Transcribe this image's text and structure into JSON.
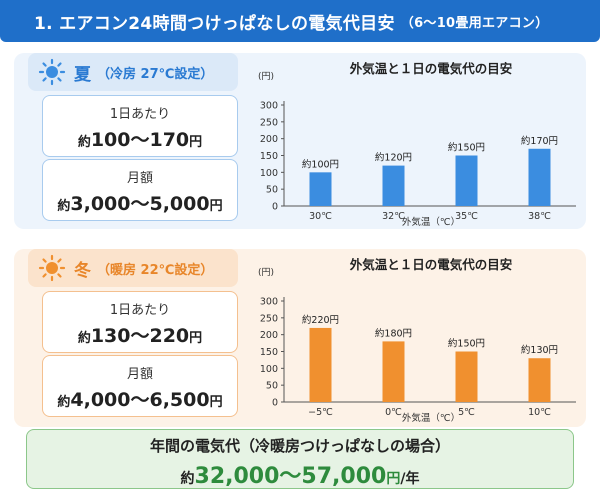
{
  "header": {
    "title": "1. エアコン24時間つけっぱなしの電気代目安",
    "subtitle": "（6～10畳用エアコン）"
  },
  "summer": {
    "name": "夏",
    "setting": "（冷房 27℃設定）",
    "daily_label": "1日あたり",
    "daily_prefix": "約",
    "daily_range": "100～170",
    "daily_unit": "円",
    "monthly_label": "月額",
    "monthly_prefix": "約",
    "monthly_range": "3,000～5,000",
    "monthly_unit": "円"
  },
  "winter": {
    "name": "冬",
    "setting": "（暖房 22℃設定）",
    "daily_label": "1日あたり",
    "daily_prefix": "約",
    "daily_range": "130～220",
    "daily_unit": "円",
    "monthly_label": "月額",
    "monthly_prefix": "約",
    "monthly_range": "4,000～6,500",
    "monthly_unit": "円"
  },
  "annual": {
    "title": "年間の電気代（冷暖房つけっぱなしの場合）",
    "prefix": "約",
    "range": "32,000～57,000",
    "unit": "円",
    "suffix": "/年"
  },
  "colors": {
    "header": "#1f6fc9",
    "summer_bar": "#3b8de0",
    "winter_bar": "#f0902f",
    "annual_value": "#2e8b3d"
  },
  "chart_data": [
    {
      "type": "bar",
      "title": "外気温と１日の電気代の目安",
      "ylabel": "(円)",
      "xlabel": "外気温（℃）",
      "categories": [
        "30℃",
        "32℃",
        "35℃",
        "38℃"
      ],
      "values": [
        100,
        120,
        150,
        170
      ],
      "data_labels": [
        "約100円",
        "約120円",
        "約150円",
        "約170円"
      ],
      "ylim": [
        0,
        300
      ],
      "yticks": [
        0,
        50,
        100,
        150,
        200,
        250,
        300
      ],
      "grid": false,
      "color": "#3b8de0"
    },
    {
      "type": "bar",
      "title": "外気温と１日の電気代の目安",
      "ylabel": "(円)",
      "xlabel": "外気温（℃）",
      "categories": [
        "−5℃",
        "0℃",
        "5℃",
        "10℃"
      ],
      "values": [
        220,
        180,
        150,
        130
      ],
      "data_labels": [
        "約220円",
        "約180円",
        "約150円",
        "約130円"
      ],
      "ylim": [
        0,
        300
      ],
      "yticks": [
        0,
        50,
        100,
        150,
        200,
        250,
        300
      ],
      "grid": false,
      "color": "#f0902f"
    }
  ]
}
